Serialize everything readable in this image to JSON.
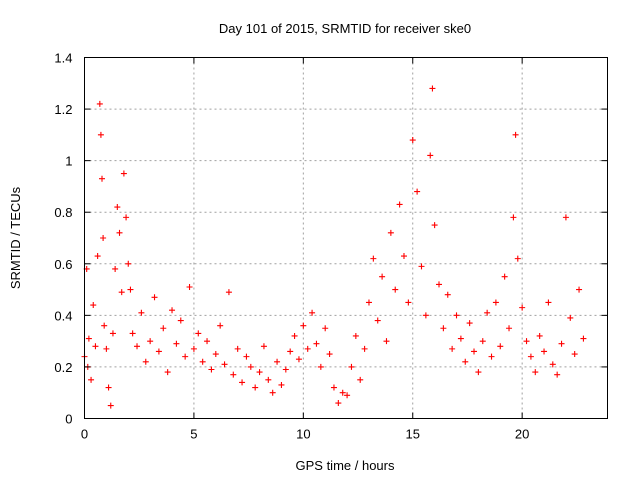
{
  "chart_data": {
    "type": "scatter",
    "title": "Day 101 of 2015, SRMTID for receiver ske0",
    "xlabel": "GPS time / hours",
    "ylabel": "SRMTID / TECUs",
    "xlim": [
      0,
      23.9
    ],
    "ylim": [
      0,
      1.4
    ],
    "xticks": [
      0,
      5,
      10,
      15,
      20
    ],
    "xtick_labels": [
      "0",
      "5",
      "10",
      "15",
      "20"
    ],
    "yticks": [
      0,
      0.2,
      0.4,
      0.6,
      0.8,
      1.0,
      1.2,
      1.4
    ],
    "ytick_labels": [
      "0",
      "0.2",
      "0.4",
      "0.6",
      "0.8",
      "1",
      "1.2",
      "1.4"
    ],
    "grid": true,
    "marker": "+",
    "color": "#ff0000",
    "series": [
      {
        "name": "SRMTID",
        "x": [
          0.0,
          0.1,
          0.15,
          0.2,
          0.3,
          0.4,
          0.5,
          0.6,
          0.7,
          0.75,
          0.8,
          0.85,
          0.9,
          1.0,
          1.1,
          1.2,
          1.3,
          1.4,
          1.5,
          1.6,
          1.7,
          1.8,
          1.9,
          2.0,
          2.1,
          2.2,
          2.4,
          2.6,
          2.8,
          3.0,
          3.2,
          3.4,
          3.6,
          3.8,
          4.0,
          4.2,
          4.4,
          4.6,
          4.8,
          5.0,
          5.2,
          5.4,
          5.6,
          5.8,
          6.0,
          6.2,
          6.4,
          6.6,
          6.8,
          7.0,
          7.2,
          7.4,
          7.6,
          7.8,
          8.0,
          8.2,
          8.4,
          8.6,
          8.8,
          9.0,
          9.2,
          9.4,
          9.6,
          9.8,
          10.0,
          10.2,
          10.4,
          10.6,
          10.8,
          11.0,
          11.2,
          11.4,
          11.6,
          11.8,
          12.0,
          12.2,
          12.4,
          12.6,
          12.8,
          13.0,
          13.2,
          13.4,
          13.6,
          13.8,
          14.0,
          14.2,
          14.4,
          14.6,
          14.8,
          15.0,
          15.2,
          15.4,
          15.6,
          15.8,
          15.9,
          16.0,
          16.2,
          16.4,
          16.6,
          16.8,
          17.0,
          17.2,
          17.4,
          17.6,
          17.8,
          18.0,
          18.2,
          18.4,
          18.6,
          18.8,
          19.0,
          19.2,
          19.4,
          19.6,
          19.7,
          19.8,
          20.0,
          20.2,
          20.4,
          20.6,
          20.8,
          21.0,
          21.2,
          21.4,
          21.6,
          21.8,
          22.0,
          22.2,
          22.4,
          22.6,
          22.8
        ],
        "y": [
          0.24,
          0.58,
          0.2,
          0.31,
          0.15,
          0.44,
          0.28,
          0.63,
          1.22,
          1.1,
          0.93,
          0.7,
          0.36,
          0.27,
          0.12,
          0.05,
          0.33,
          0.58,
          0.82,
          0.72,
          0.49,
          0.95,
          0.78,
          0.6,
          0.5,
          0.33,
          0.28,
          0.41,
          0.22,
          0.3,
          0.47,
          0.26,
          0.35,
          0.18,
          0.42,
          0.29,
          0.38,
          0.24,
          0.51,
          0.27,
          0.33,
          0.22,
          0.3,
          0.19,
          0.25,
          0.36,
          0.21,
          0.49,
          0.17,
          0.27,
          0.14,
          0.24,
          0.2,
          0.12,
          0.18,
          0.28,
          0.15,
          0.1,
          0.22,
          0.13,
          0.19,
          0.26,
          0.32,
          0.23,
          0.36,
          0.27,
          0.41,
          0.29,
          0.2,
          0.35,
          0.25,
          0.12,
          0.06,
          0.1,
          0.09,
          0.2,
          0.32,
          0.15,
          0.27,
          0.45,
          0.62,
          0.38,
          0.55,
          0.3,
          0.72,
          0.5,
          0.83,
          0.63,
          0.45,
          1.08,
          0.88,
          0.59,
          0.4,
          1.02,
          1.28,
          0.75,
          0.52,
          0.35,
          0.48,
          0.27,
          0.4,
          0.31,
          0.22,
          0.37,
          0.26,
          0.18,
          0.3,
          0.41,
          0.24,
          0.45,
          0.28,
          0.55,
          0.35,
          0.78,
          1.1,
          0.62,
          0.43,
          0.3,
          0.24,
          0.18,
          0.32,
          0.26,
          0.45,
          0.21,
          0.17,
          0.29,
          0.78,
          0.39,
          0.25,
          0.5,
          0.31
        ]
      }
    ]
  }
}
